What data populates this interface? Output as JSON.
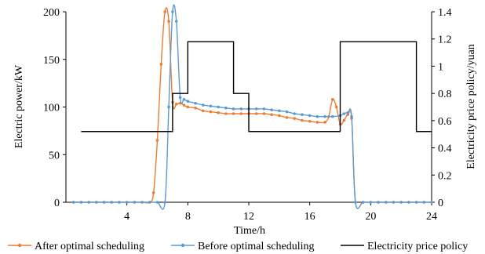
{
  "chart_data": {
    "type": "line",
    "xlabel": "Time/h",
    "ylabel_left": "Electric power/kW",
    "ylabel_right": "Electricity price policy/yuan",
    "xlim": [
      0,
      24
    ],
    "ylim_left": [
      0,
      200
    ],
    "ylim_right": [
      0,
      1.4
    ],
    "x_ticks": [
      4,
      8,
      12,
      16,
      20,
      24
    ],
    "y_ticks_left": [
      0,
      50,
      100,
      150,
      200
    ],
    "y_ticks_right": [
      0,
      0.2,
      0.4,
      0.6,
      0.8,
      1,
      1.2,
      1.4
    ],
    "grid": false,
    "legend_position": "bottom",
    "series": [
      {
        "name": "After optimal scheduling",
        "color": "#ED7D31",
        "axis": "left",
        "marker": "dot",
        "x": [
          0.5,
          1,
          1.5,
          2,
          2.5,
          3,
          3.5,
          4,
          4.5,
          5,
          5.5,
          5.75,
          6,
          6.25,
          6.5,
          6.75,
          7,
          7.25,
          7.5,
          7.75,
          8,
          8.5,
          9,
          9.5,
          10,
          10.5,
          11,
          11.5,
          12,
          12.5,
          13,
          13.5,
          14,
          14.5,
          15,
          15.5,
          16,
          16.5,
          17,
          17.25,
          17.5,
          17.75,
          18,
          18.25,
          18.5,
          18.75,
          19,
          19.5,
          20,
          20.5,
          21,
          21.5,
          22,
          22.5,
          23,
          23.5,
          24
        ],
        "values": [
          0,
          0,
          0,
          0,
          0,
          0,
          0,
          0,
          0,
          0,
          0,
          10,
          65,
          145,
          200,
          190,
          105,
          103,
          104,
          102,
          100,
          99,
          96,
          95,
          94,
          93,
          93,
          93,
          93,
          93,
          93,
          92,
          91,
          89,
          88,
          86,
          85,
          84,
          84,
          90,
          108,
          100,
          82,
          86,
          92,
          88,
          0,
          0,
          0,
          0,
          0,
          0,
          0,
          0,
          0,
          0,
          0
        ]
      },
      {
        "name": "Before optimal scheduling",
        "color": "#5B9BD5",
        "axis": "left",
        "marker": "dot",
        "x": [
          0.5,
          1,
          1.5,
          2,
          2.5,
          3,
          3.5,
          4,
          4.5,
          5,
          5.5,
          6,
          6.5,
          6.75,
          7,
          7.25,
          7.5,
          7.75,
          8,
          8.5,
          9,
          9.5,
          10,
          10.5,
          11,
          11.5,
          12,
          12.5,
          13,
          13.5,
          14,
          14.5,
          15,
          15.5,
          16,
          16.5,
          17,
          17.5,
          18,
          18.25,
          18.5,
          18.75,
          19,
          19.5,
          20,
          20.5,
          21,
          21.5,
          22,
          22.5,
          23,
          23.5,
          24
        ],
        "values": [
          0,
          0,
          0,
          0,
          0,
          0,
          0,
          0,
          0,
          0,
          0,
          0,
          0,
          100,
          200,
          190,
          110,
          108,
          106,
          104,
          102,
          101,
          100,
          99,
          98,
          98,
          98,
          98,
          98,
          97,
          96,
          95,
          93,
          92,
          91,
          90,
          90,
          90,
          91,
          93,
          94,
          90,
          0,
          0,
          0,
          0,
          0,
          0,
          0,
          0,
          0,
          0,
          0
        ]
      },
      {
        "name": "Electricity price policy",
        "color": "#000000",
        "axis": "right",
        "marker": "none",
        "step": true,
        "x": [
          1,
          7,
          7,
          8,
          8,
          11,
          11,
          12,
          12,
          18,
          18,
          23,
          23,
          24
        ],
        "values": [
          0.52,
          0.52,
          0.8,
          0.8,
          1.18,
          1.18,
          0.8,
          0.8,
          0.52,
          0.52,
          1.18,
          1.18,
          0.52,
          0.52
        ]
      }
    ]
  }
}
